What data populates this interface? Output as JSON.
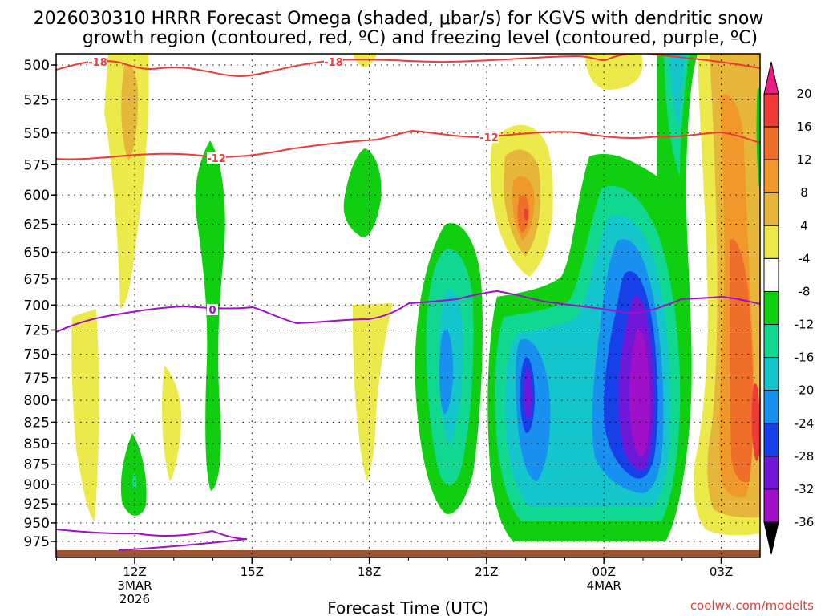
{
  "chart_data": {
    "type": "contour",
    "title_line1": "2026030310 HRRR Forecast Omega (shaded, μbar/s) for KGVS with dendritic snow",
    "title_line2": "growth region (contoured, red, ºC) and freezing level (contoured, purple, ºC)",
    "xlabel": "Forecast Time (UTC)",
    "ylabel": "",
    "y_levels": [
      "500",
      "525",
      "550",
      "575",
      "600",
      "625",
      "650",
      "675",
      "700",
      "725",
      "750",
      "775",
      "800",
      "825",
      "850",
      "875",
      "900",
      "925",
      "950",
      "975"
    ],
    "x_ticks": [
      {
        "label": "12Z",
        "sub1": "3MAR",
        "sub2": "2026"
      },
      {
        "label": "15Z",
        "sub1": "",
        "sub2": ""
      },
      {
        "label": "18Z",
        "sub1": "",
        "sub2": ""
      },
      {
        "label": "21Z",
        "sub1": "",
        "sub2": ""
      },
      {
        "label": "00Z",
        "sub1": "4MAR",
        "sub2": ""
      },
      {
        "label": "03Z",
        "sub1": "",
        "sub2": ""
      }
    ],
    "colorbar_labels": [
      "20",
      "16",
      "12",
      "8",
      "4",
      "-4",
      "-8",
      "-12",
      "-16",
      "-20",
      "-24",
      "-28",
      "-32",
      "-36"
    ],
    "colorbar_colors": [
      "#ec1a83",
      "#ee3b37",
      "#ee6e2a",
      "#f0982c",
      "#e6b63a",
      "#ece94a",
      "#ffffff",
      "#10cf10",
      "#10d890",
      "#14c6cc",
      "#1890f0",
      "#1840e8",
      "#7018d8",
      "#a010c8",
      "#a8a8a8",
      "#000000"
    ],
    "contour_labels": {
      "temp_minus18": "-18",
      "temp_minus12": "-12",
      "freezing": "0"
    },
    "line_colors": {
      "temperature": "#ee3b37",
      "freezing": "#a010c8",
      "ground": "#a0522d"
    },
    "credit": "coolwx.com/modelts"
  }
}
